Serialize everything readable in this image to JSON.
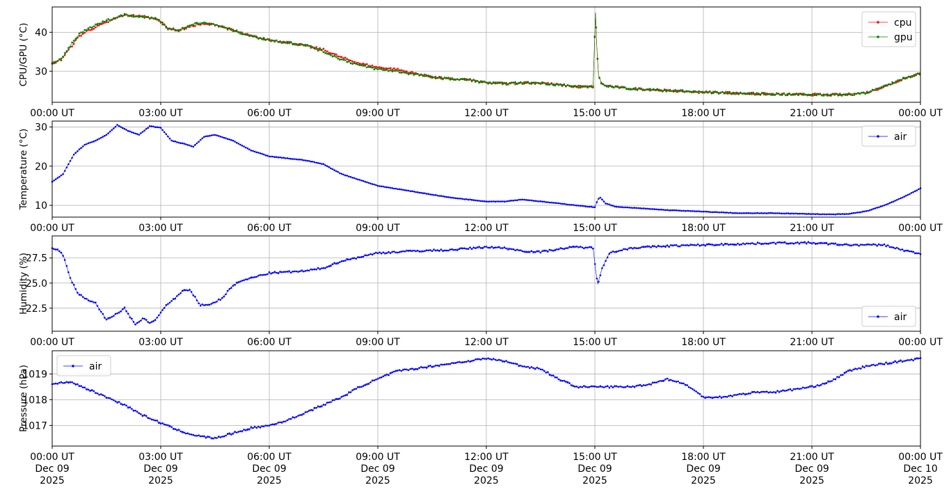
{
  "chart_data": [
    {
      "type": "line",
      "ylabel": "CPU/GPU (°C)",
      "ylim": [
        22,
        46.5
      ],
      "yticks": [
        30,
        40
      ],
      "xlim_hours": [
        0,
        24
      ],
      "x_tick_labels": [
        "00:00 UT",
        "03:00 UT",
        "06:00 UT",
        "09:00 UT",
        "12:00 UT",
        "15:00 UT",
        "18:00 UT",
        "21:00 UT",
        "00:00 UT"
      ],
      "legend_position": "top-right",
      "grid": true,
      "series": [
        {
          "name": "cpu",
          "color": "#ff0000",
          "x_hours": [
            0,
            0.25,
            0.5,
            0.75,
            1,
            1.5,
            2,
            2.5,
            2.9,
            3.2,
            3.5,
            4,
            4.5,
            5,
            5.5,
            6,
            6.5,
            7,
            7.5,
            8,
            8.5,
            9,
            9.5,
            10,
            10.5,
            11,
            11.5,
            12,
            12.5,
            13,
            13.5,
            14,
            14.5,
            14.95,
            15.02,
            15.05,
            15.1,
            15.2,
            15.5,
            16,
            16.5,
            17,
            17.5,
            18,
            18.5,
            19,
            19.5,
            20,
            20.5,
            21,
            21.5,
            22,
            22.5,
            23,
            23.5,
            24
          ],
          "values": [
            32,
            33,
            36,
            39,
            40.5,
            42.5,
            44.5,
            44,
            43.5,
            41,
            40.5,
            42,
            42,
            40.5,
            39,
            38,
            37.5,
            36.5,
            35.5,
            33.5,
            32,
            31,
            30.5,
            29.5,
            28.5,
            28,
            27.8,
            27,
            26.8,
            27,
            27,
            26.5,
            26,
            26,
            45,
            37,
            29,
            26.5,
            26,
            25.5,
            25.3,
            25,
            24.8,
            24.6,
            24.5,
            24.3,
            24.2,
            24.1,
            24,
            24,
            23.9,
            24,
            24.5,
            26,
            28,
            29.5
          ]
        },
        {
          "name": "gpu",
          "color": "#008000",
          "x_hours": [
            0,
            0.25,
            0.5,
            0.75,
            1,
            1.5,
            2,
            2.5,
            2.9,
            3.2,
            3.5,
            4,
            4.5,
            5,
            5.5,
            6,
            6.5,
            7,
            7.5,
            8,
            8.5,
            9,
            9.5,
            10,
            10.5,
            11,
            11.5,
            12,
            12.5,
            13,
            13.5,
            14,
            14.5,
            14.95,
            15.02,
            15.05,
            15.1,
            15.2,
            15.5,
            16,
            16.5,
            17,
            17.5,
            18,
            18.5,
            19,
            19.5,
            20,
            20.5,
            21,
            21.5,
            22,
            22.5,
            23,
            23.5,
            24
          ],
          "values": [
            32,
            33,
            36.5,
            39.5,
            41,
            43,
            44.5,
            44,
            43.5,
            41,
            40.5,
            42.5,
            42,
            40.5,
            39,
            38,
            37.3,
            36.8,
            35,
            33,
            31.5,
            30.5,
            30,
            29.2,
            28.5,
            28,
            27.8,
            27,
            26.8,
            27,
            27,
            26.5,
            26,
            26,
            45,
            37,
            29,
            26.5,
            26,
            25.5,
            25.3,
            25,
            24.8,
            24.6,
            24.5,
            24.3,
            24.2,
            24.1,
            24,
            24,
            23.9,
            24,
            24.5,
            26,
            28,
            29.5
          ]
        }
      ]
    },
    {
      "type": "line",
      "ylabel": "Temperature (°C)",
      "ylim": [
        7,
        31.5
      ],
      "yticks": [
        10,
        20,
        30
      ],
      "xlim_hours": [
        0,
        24
      ],
      "x_tick_labels": [
        "00:00 UT",
        "03:00 UT",
        "06:00 UT",
        "09:00 UT",
        "12:00 UT",
        "15:00 UT",
        "18:00 UT",
        "21:00 UT",
        "00:00 UT"
      ],
      "legend_position": "top-right",
      "grid": true,
      "series": [
        {
          "name": "air",
          "color": "#0000ff",
          "x_hours": [
            0,
            0.3,
            0.6,
            0.9,
            1.2,
            1.5,
            1.8,
            2.1,
            2.4,
            2.7,
            3,
            3.3,
            3.6,
            3.9,
            4.2,
            4.5,
            5,
            5.5,
            6,
            6.5,
            7,
            7.5,
            8,
            8.5,
            9,
            10,
            11,
            12,
            12.5,
            13,
            13.5,
            14,
            14.5,
            15,
            15.08,
            15.15,
            15.3,
            15.6,
            16,
            17,
            18,
            19,
            20,
            21,
            21.5,
            22,
            22.5,
            23,
            23.5,
            24
          ],
          "values": [
            16,
            18,
            23,
            25.5,
            26.5,
            28,
            30.5,
            29,
            28,
            30.2,
            29.8,
            26.5,
            25.8,
            25,
            27.5,
            28,
            26.5,
            24,
            22.5,
            22,
            21.5,
            20.5,
            18,
            16.5,
            15,
            13.5,
            12,
            11,
            11,
            11.5,
            11,
            10.5,
            10,
            9.5,
            11.5,
            12,
            10.5,
            9.6,
            9.4,
            8.8,
            8.4,
            8,
            8,
            7.8,
            7.7,
            7.8,
            8.5,
            10,
            12,
            14.3
          ]
        }
      ]
    },
    {
      "type": "line",
      "ylabel": "Humidity (%)",
      "ylim": [
        20.2,
        29.7
      ],
      "yticks": [
        22.5,
        25.0,
        27.5
      ],
      "xlim_hours": [
        0,
        24
      ],
      "x_tick_labels": [
        "00:00 UT",
        "03:00 UT",
        "06:00 UT",
        "09:00 UT",
        "12:00 UT",
        "15:00 UT",
        "18:00 UT",
        "21:00 UT",
        "00:00 UT"
      ],
      "legend_position": "lower-right",
      "grid": true,
      "series": [
        {
          "name": "air",
          "color": "#0000ff",
          "x_hours": [
            0,
            0.15,
            0.3,
            0.5,
            0.7,
            0.9,
            1.2,
            1.5,
            1.8,
            2,
            2.3,
            2.5,
            2.7,
            2.9,
            3.1,
            3.4,
            3.6,
            3.8,
            4.1,
            4.4,
            4.7,
            5,
            5.3,
            5.6,
            6,
            6.5,
            7,
            7.5,
            8,
            8.5,
            9,
            9.5,
            10,
            11,
            12,
            12.5,
            13,
            13.5,
            14,
            14.5,
            14.95,
            15.03,
            15.08,
            15.2,
            15.4,
            16,
            17,
            18,
            19,
            20,
            21,
            22,
            23,
            23.5,
            24
          ],
          "values": [
            28.5,
            28.3,
            27.8,
            25.5,
            24,
            23.5,
            23,
            21.3,
            22,
            22.5,
            20.8,
            21.5,
            21,
            21.5,
            22.6,
            23.5,
            24.2,
            24.3,
            22.8,
            22.9,
            23.5,
            24.8,
            25.3,
            25.6,
            26,
            26.1,
            26.2,
            26.5,
            27.2,
            27.6,
            28,
            28.1,
            28.2,
            28.3,
            28.6,
            28.5,
            28.2,
            28.1,
            28.4,
            28.6,
            28.5,
            26,
            24.9,
            26.5,
            28,
            28.5,
            28.7,
            28.8,
            28.9,
            29,
            29,
            28.8,
            28.8,
            28.3,
            27.9
          ]
        }
      ]
    },
    {
      "type": "line",
      "ylabel": "Pressure (hPa)",
      "ylim": [
        1016.2,
        1019.9
      ],
      "yticks": [
        1017,
        1018,
        1019
      ],
      "xlim_hours": [
        0,
        24
      ],
      "x_tick_labels": [
        "00:00 UT\nDec 09\n2025",
        "03:00 UT\nDec 09\n2025",
        "06:00 UT\nDec 09\n2025",
        "09:00 UT\nDec 09\n2025",
        "12:00 UT\nDec 09\n2025",
        "15:00 UT\nDec 09\n2025",
        "18:00 UT\nDec 09\n2025",
        "21:00 UT\nDec 09\n2025",
        "00:00 UT\nDec 10\n2025"
      ],
      "legend_position": "top-left",
      "grid": true,
      "series": [
        {
          "name": "air",
          "color": "#0000ff",
          "x_hours": [
            0,
            0.5,
            1,
            1.5,
            2,
            2.5,
            3,
            3.5,
            4,
            4.5,
            5,
            5.5,
            6,
            6.5,
            7,
            7.5,
            8,
            8.5,
            9,
            9.5,
            10,
            10.5,
            11,
            11.5,
            12,
            12.5,
            13,
            13.5,
            14,
            14.5,
            15,
            15.5,
            16,
            16.5,
            17,
            17.5,
            18,
            18.5,
            19,
            19.5,
            20,
            20.5,
            21,
            21.5,
            22,
            22.5,
            23,
            23.5,
            24
          ],
          "values": [
            1018.6,
            1018.7,
            1018.4,
            1018.1,
            1017.8,
            1017.4,
            1017.1,
            1016.8,
            1016.6,
            1016.5,
            1016.7,
            1016.9,
            1017.0,
            1017.2,
            1017.5,
            1017.8,
            1018.1,
            1018.5,
            1018.8,
            1019.1,
            1019.2,
            1019.3,
            1019.4,
            1019.5,
            1019.6,
            1019.5,
            1019.3,
            1019.2,
            1018.8,
            1018.5,
            1018.5,
            1018.5,
            1018.5,
            1018.6,
            1018.8,
            1018.6,
            1018.1,
            1018.1,
            1018.2,
            1018.3,
            1018.3,
            1018.4,
            1018.5,
            1018.7,
            1019.1,
            1019.3,
            1019.4,
            1019.5,
            1019.6
          ]
        }
      ]
    }
  ]
}
